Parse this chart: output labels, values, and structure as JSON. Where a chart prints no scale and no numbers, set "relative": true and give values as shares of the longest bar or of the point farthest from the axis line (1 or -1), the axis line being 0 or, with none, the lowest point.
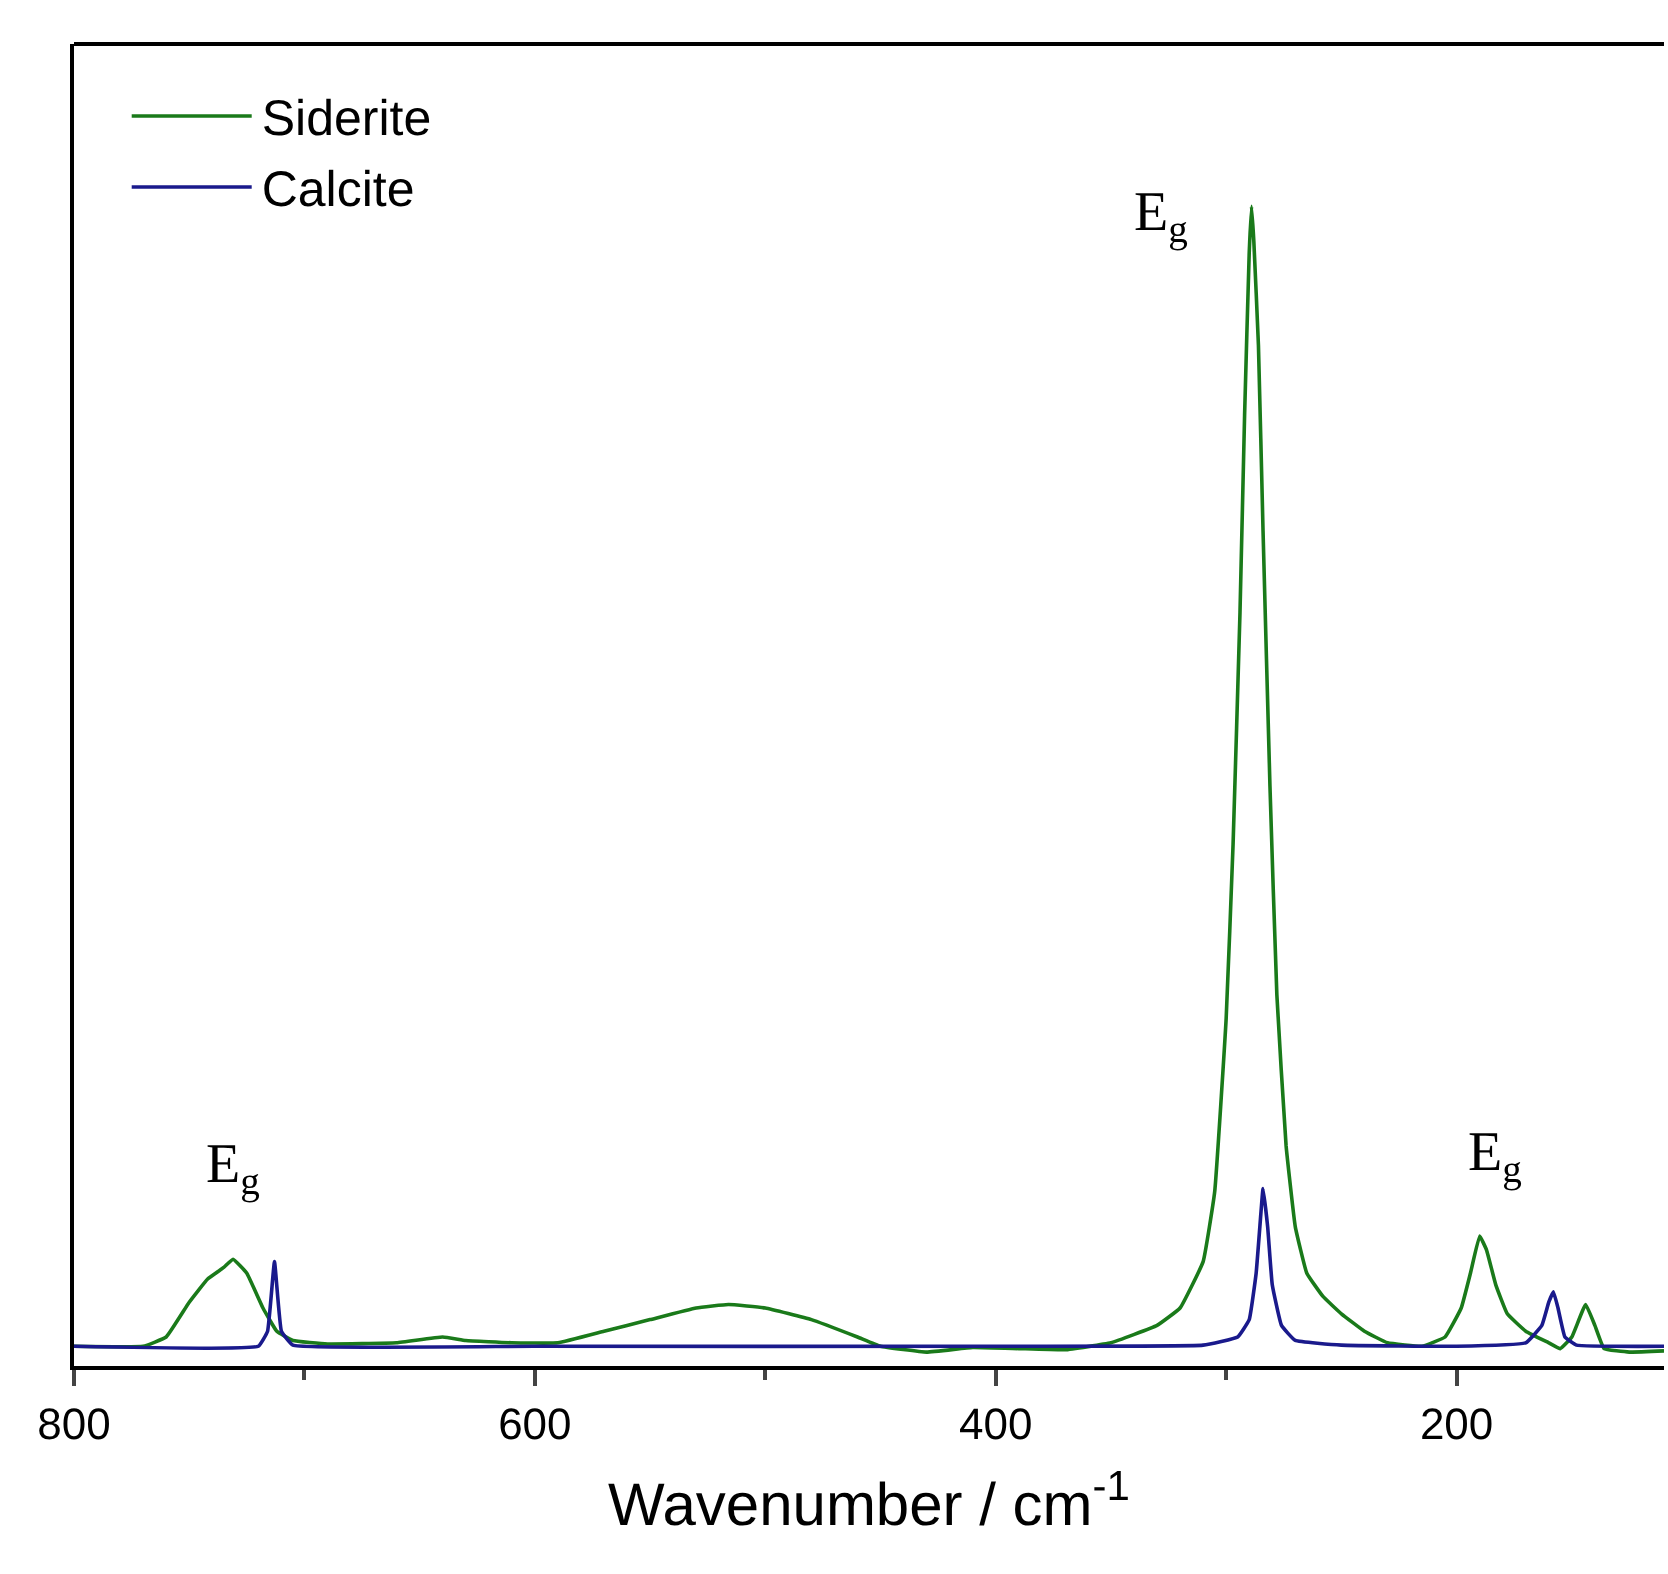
{
  "chart_data": {
    "type": "line",
    "relative": true,
    "xlabel": "Wavenumber / cm$^{-1}$",
    "xlim": [
      800,
      110
    ],
    "xticks": [
      800,
      {
        "value": 700,
        "label": null
      },
      600,
      {
        "value": 500,
        "label": null
      },
      400,
      {
        "value": 300,
        "label": null
      },
      200
    ],
    "legend": "top left",
    "marker": "none",
    "line_style": "solid",
    "annotations": [
      {
        "text": "E$_{g}$",
        "x": 289,
        "y": 1.0
      },
      {
        "text": "E$_{g}$",
        "x": 731,
        "y": 0.092
      },
      {
        "text": "E$_{g}$",
        "x": 190,
        "y": 0.112
      }
    ],
    "series": [
      {
        "name": "Siderite",
        "color": "#1a7a1a",
        "x": [
          800,
          770,
          760,
          750,
          742,
          735,
          731,
          725,
          718,
          712,
          705,
          690,
          660,
          640,
          630,
          610,
          590,
          570,
          550,
          530,
          516,
          500,
          480,
          460,
          450,
          430,
          410,
          390,
          370,
          350,
          330,
          320,
          310,
          305,
          300,
          297,
          294,
          292,
          290,
          289,
          288,
          286,
          284,
          281,
          278,
          274,
          270,
          265,
          258,
          250,
          240,
          230,
          215,
          205,
          198,
          194,
          190,
          187,
          183,
          178,
          170,
          160,
          155,
          150,
          144,
          140,
          136,
          125,
          110
        ],
        "values": [
          0.017,
          0.017,
          0.025,
          0.055,
          0.075,
          0.085,
          0.092,
          0.08,
          0.05,
          0.03,
          0.022,
          0.019,
          0.02,
          0.025,
          0.022,
          0.02,
          0.02,
          0.03,
          0.04,
          0.05,
          0.053,
          0.05,
          0.04,
          0.025,
          0.017,
          0.012,
          0.016,
          0.015,
          0.014,
          0.02,
          0.035,
          0.05,
          0.09,
          0.15,
          0.3,
          0.45,
          0.65,
          0.82,
          0.96,
          1.0,
          0.97,
          0.88,
          0.72,
          0.5,
          0.32,
          0.19,
          0.12,
          0.08,
          0.06,
          0.045,
          0.03,
          0.02,
          0.017,
          0.025,
          0.05,
          0.08,
          0.112,
          0.1,
          0.07,
          0.045,
          0.03,
          0.02,
          0.015,
          0.025,
          0.053,
          0.035,
          0.015,
          0.012,
          0.013
        ]
      },
      {
        "name": "Calcite",
        "color": "#1a1a8c",
        "x": [
          800,
          720,
          716,
          713,
          710,
          705,
          600,
          400,
          310,
          295,
          290,
          287,
          285,
          284,
          282,
          280,
          276,
          270,
          250,
          200,
          170,
          163,
          160,
          158,
          156,
          153,
          148,
          110
        ],
        "values": [
          0.017,
          0.017,
          0.03,
          0.09,
          0.03,
          0.018,
          0.017,
          0.017,
          0.018,
          0.025,
          0.04,
          0.08,
          0.13,
          0.153,
          0.12,
          0.07,
          0.035,
          0.022,
          0.018,
          0.017,
          0.02,
          0.035,
          0.055,
          0.064,
          0.05,
          0.025,
          0.018,
          0.017
        ]
      }
    ]
  }
}
